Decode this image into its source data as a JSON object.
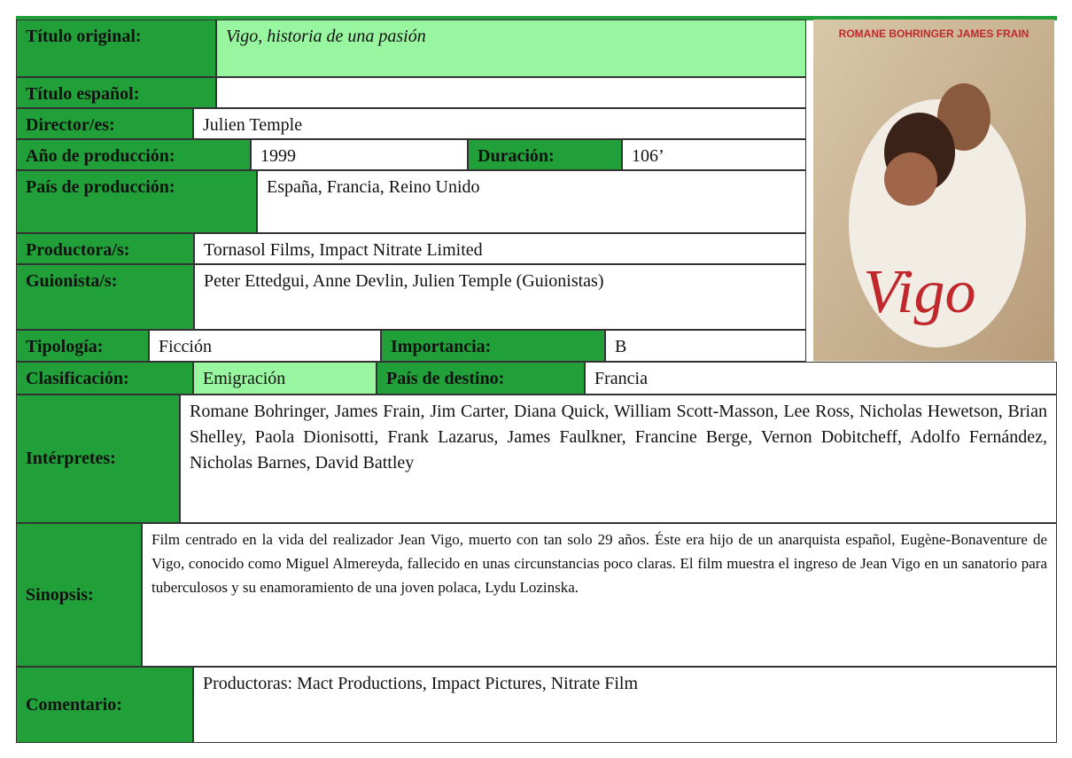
{
  "fields": {
    "titulo_original": {
      "label": "Título original:",
      "value": "Vigo, historia de una pasión"
    },
    "titulo_espanol": {
      "label": "Título español:"
    },
    "director": {
      "label": "Director/es:",
      "value": "Julien Temple"
    },
    "ano": {
      "label": "Año de producción:",
      "value": "1999"
    },
    "duracion": {
      "label": "Duración:",
      "value": "106’"
    },
    "pais_produccion": {
      "label": "País de producción:",
      "value": "España, Francia, Reino Unido"
    },
    "productora": {
      "label": "Productora/s:",
      "value": "Tornasol Films, Impact Nitrate Limited"
    },
    "guionista": {
      "label": "Guionista/s:",
      "value": "Peter Ettedgui, Anne Devlin, Julien Temple (Guionistas)"
    },
    "tipologia": {
      "label": "Tipología:",
      "value": "Ficción"
    },
    "importancia": {
      "label": "Importancia:",
      "value": "B"
    },
    "clasificacion": {
      "label": "Clasificación:",
      "value": "Emigración"
    },
    "pais_destino": {
      "label": "País de destino:",
      "value": "Francia"
    },
    "interpretes": {
      "label": "Intérpretes:",
      "value": "Romane Bohringer, James Frain, Jim Carter, Diana Quick, William Scott-Masson, Lee Ross, Nicholas Hewetson, Brian Shelley, Paola Dionisotti, Frank Lazarus, James Faulkner, Francine Berge, Vernon Dobitcheff, Adolfo Fernández, Nicholas Barnes, David Battley"
    },
    "sinopsis": {
      "label": "Sinopsis:",
      "value": "Film centrado en la vida del realizador Jean Vigo, muerto con tan solo 29 años. Éste era hijo de un anarquista español, Eugène-Bonaventure de Vigo, conocido como Miguel Almereyda, fallecido en unas circunstancias poco claras. El film muestra el ingreso de Jean Vigo en un sanatorio para tuberculosos y su enamoramiento de una joven polaca, Lydu Lozinska."
    },
    "comentario": {
      "label": "Comentario:",
      "value": "Productoras: Mact Productions, Impact Pictures, Nitrate Film"
    }
  },
  "poster": {
    "actors": "ROMANE BOHRINGER   JAMES FRAIN",
    "title": "Vigo"
  }
}
